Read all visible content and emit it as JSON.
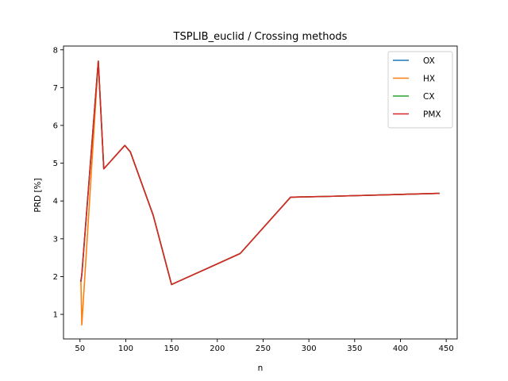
{
  "chart_data": {
    "type": "line",
    "title": "TSPLIB_euclid / Crossing methods",
    "xlabel": "n",
    "ylabel": "PRD [%]",
    "xlim": [
      32,
      462
    ],
    "ylim": [
      0.35,
      8.1
    ],
    "xticks": [
      50,
      100,
      150,
      200,
      250,
      300,
      350,
      400,
      450
    ],
    "yticks": [
      1,
      2,
      3,
      4,
      5,
      6,
      7,
      8
    ],
    "grid": false,
    "legend": "top-right",
    "series": [
      {
        "name": "OX",
        "color": "#1f77b4",
        "x": [
          51,
          52,
          70,
          76,
          99,
          105,
          130,
          150,
          225,
          280,
          299,
          318,
          439,
          442
        ],
        "y": [
          1.88,
          2.05,
          7.7,
          4.85,
          5.47,
          5.3,
          3.62,
          1.79,
          2.61,
          4.1,
          4.11,
          4.12,
          4.2,
          4.2
        ]
      },
      {
        "name": "HX",
        "color": "#ff7f0e",
        "x": [
          51,
          52,
          70,
          76,
          99,
          105,
          130,
          150,
          225,
          280,
          299,
          318,
          439,
          442
        ],
        "y": [
          1.88,
          0.72,
          7.7,
          4.85,
          5.47,
          5.3,
          3.62,
          1.79,
          2.61,
          4.1,
          4.11,
          4.12,
          4.2,
          4.2
        ]
      },
      {
        "name": "CX",
        "color": "#2ca02c",
        "x": [
          51,
          52,
          70,
          76,
          99,
          105,
          130,
          150,
          225,
          280,
          299,
          318,
          439,
          442
        ],
        "y": [
          1.88,
          2.05,
          7.7,
          4.85,
          5.47,
          5.3,
          3.62,
          1.79,
          2.61,
          4.1,
          4.11,
          4.12,
          4.2,
          4.2
        ]
      },
      {
        "name": "PMX",
        "color": "#d62728",
        "x": [
          51,
          52,
          70,
          76,
          99,
          105,
          130,
          150,
          225,
          280,
          299,
          318,
          439,
          442
        ],
        "y": [
          1.88,
          2.05,
          7.7,
          4.85,
          5.47,
          5.3,
          3.62,
          1.79,
          2.61,
          4.1,
          4.11,
          4.12,
          4.2,
          4.2
        ]
      }
    ]
  }
}
